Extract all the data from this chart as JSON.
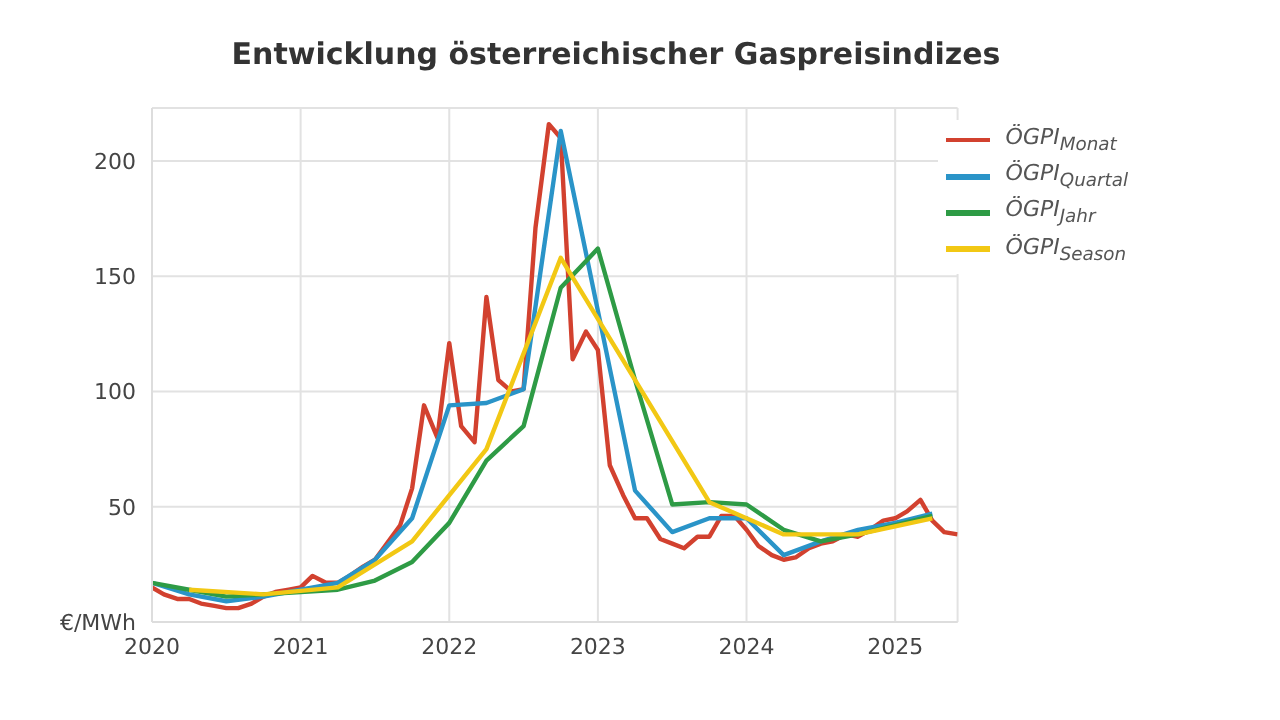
{
  "chart_data": {
    "type": "line",
    "title": "Entwicklung österreichischer Gaspreisindizes",
    "xlim": [
      2020,
      2025.42
    ],
    "xticks": [
      2020,
      2021,
      2022,
      2023,
      2024,
      2025
    ],
    "ylim": [
      0,
      223
    ],
    "yticks": [
      {
        "value": 0,
        "label": "€/MWh"
      },
      50,
      100,
      150,
      200
    ],
    "grid": true,
    "legend": "top right",
    "marker": "none",
    "line_style": "solid",
    "series": [
      {
        "name": "ÖGPI$_{Monat}$",
        "color": "#d2412f",
        "x": [
          2020,
          2020.08,
          2020.17,
          2020.25,
          2020.33,
          2020.42,
          2020.5,
          2020.58,
          2020.67,
          2020.75,
          2020.83,
          2020.92,
          2021,
          2021.08,
          2021.17,
          2021.25,
          2021.33,
          2021.42,
          2021.5,
          2021.58,
          2021.67,
          2021.75,
          2021.83,
          2021.92,
          2022,
          2022.08,
          2022.17,
          2022.25,
          2022.33,
          2022.42,
          2022.5,
          2022.58,
          2022.67,
          2022.75,
          2022.83,
          2022.92,
          2023,
          2023.08,
          2023.17,
          2023.25,
          2023.33,
          2023.42,
          2023.5,
          2023.58,
          2023.67,
          2023.75,
          2023.83,
          2023.92,
          2024,
          2024.08,
          2024.17,
          2024.25,
          2024.33,
          2024.42,
          2024.5,
          2024.58,
          2024.67,
          2024.75,
          2024.83,
          2024.92,
          2025,
          2025.08,
          2025.17,
          2025.25,
          2025.33,
          2025.42
        ],
        "values": [
          15,
          12,
          10,
          10,
          8,
          7,
          6,
          6,
          8,
          11,
          13,
          14,
          15,
          20,
          17,
          17,
          20,
          24,
          27,
          34,
          42,
          58,
          94,
          80,
          121,
          85,
          78,
          141,
          105,
          100,
          101,
          171,
          216,
          210,
          114,
          126,
          118,
          68,
          55,
          45,
          45,
          36,
          34,
          32,
          37,
          37,
          46,
          46,
          40,
          33,
          29,
          27,
          28,
          32,
          34,
          35,
          38,
          37,
          40,
          44,
          45,
          48,
          53,
          44,
          39,
          38
        ]
      },
      {
        "name": "ÖGPI$_{Quartal}$",
        "color": "#2a94c8",
        "x": [
          2020,
          2020.25,
          2020.5,
          2020.75,
          2021,
          2021.25,
          2021.5,
          2021.75,
          2022,
          2022.25,
          2022.5,
          2022.75,
          2023,
          2023.25,
          2023.5,
          2023.75,
          2024,
          2024.25,
          2024.5,
          2024.75,
          2025,
          2025.25
        ],
        "values": [
          17,
          12,
          9,
          11,
          14,
          17,
          27,
          45,
          94,
          95,
          101,
          213,
          135,
          57,
          39,
          45,
          45,
          29,
          35,
          40,
          43,
          47
        ]
      },
      {
        "name": "ÖGPI$_{Jahr}$",
        "color": "#2e9b45",
        "x": [
          2020,
          2020.25,
          2020.5,
          2020.75,
          2021,
          2021.25,
          2021.5,
          2021.75,
          2022,
          2022.25,
          2022.5,
          2022.75,
          2023,
          2023.25,
          2023.5,
          2023.75,
          2024,
          2024.25,
          2024.5,
          2024.75,
          2025,
          2025.25
        ],
        "values": [
          17,
          14,
          11,
          12,
          13,
          14,
          18,
          26,
          43,
          70,
          85,
          145,
          162,
          105,
          51,
          52,
          51,
          40,
          35,
          38,
          42,
          46
        ]
      },
      {
        "name": "ÖGPI$_{Season}$",
        "color": "#f2c814",
        "x": [
          2020.25,
          2020.75,
          2021.25,
          2021.75,
          2022.25,
          2022.75,
          2023.75,
          2024.25,
          2024.75,
          2025.25
        ],
        "values": [
          14,
          12,
          15,
          35,
          75,
          158,
          52,
          38,
          38,
          45
        ]
      }
    ]
  }
}
